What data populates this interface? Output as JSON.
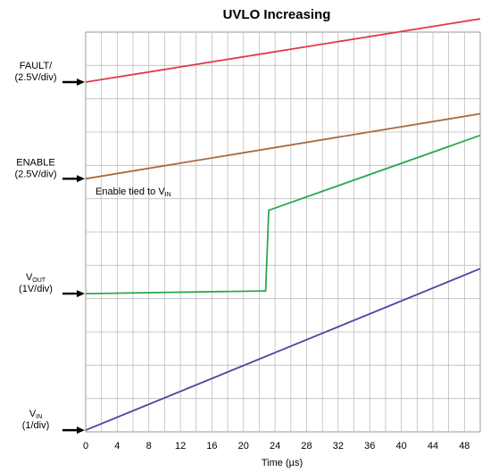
{
  "chart_data": {
    "type": "line",
    "title": "UVLO Increasing",
    "xlabel": "Time (µs)",
    "xlim": [
      0,
      50
    ],
    "x_ticks": [
      0,
      4,
      8,
      12,
      16,
      20,
      24,
      28,
      32,
      36,
      40,
      44,
      48
    ],
    "divisions_y": 12,
    "grid": true,
    "annotation": {
      "text": "Enable tied to V",
      "sub": "IN"
    },
    "channels": [
      {
        "label_main": "FAULT/",
        "label_sub": "",
        "label_scale": "(2.5V/div)",
        "color": "#e0384a",
        "ref_div": 10.5
      },
      {
        "label_main": "ENABLE",
        "label_sub": "",
        "label_scale": "(2.5V/div)",
        "color": "#a86a3c",
        "ref_div": 7.6
      },
      {
        "label_main": "V",
        "label_sub": "OUT",
        "label_scale": "(1V/div)",
        "color": "#2ea84e",
        "ref_div": 4.15
      },
      {
        "label_main": "V",
        "label_sub": "IN",
        "label_scale": "(1/div)",
        "color": "#4a4aa0",
        "ref_div": 0.05
      }
    ],
    "series": [
      {
        "color": "#e0384a",
        "x": [
          0,
          50
        ],
        "y": [
          10.5,
          12.4
        ]
      },
      {
        "color": "#a86a3c",
        "x": [
          0,
          50
        ],
        "y": [
          7.6,
          9.55
        ]
      },
      {
        "color": "#2ea84e",
        "x": [
          0,
          22.5,
          22.8,
          23.2,
          50
        ],
        "y": [
          4.15,
          4.23,
          4.23,
          6.65,
          8.9
        ]
      },
      {
        "color": "#4a4aa0",
        "x": [
          0,
          50
        ],
        "y": [
          0.05,
          4.9
        ]
      }
    ]
  }
}
